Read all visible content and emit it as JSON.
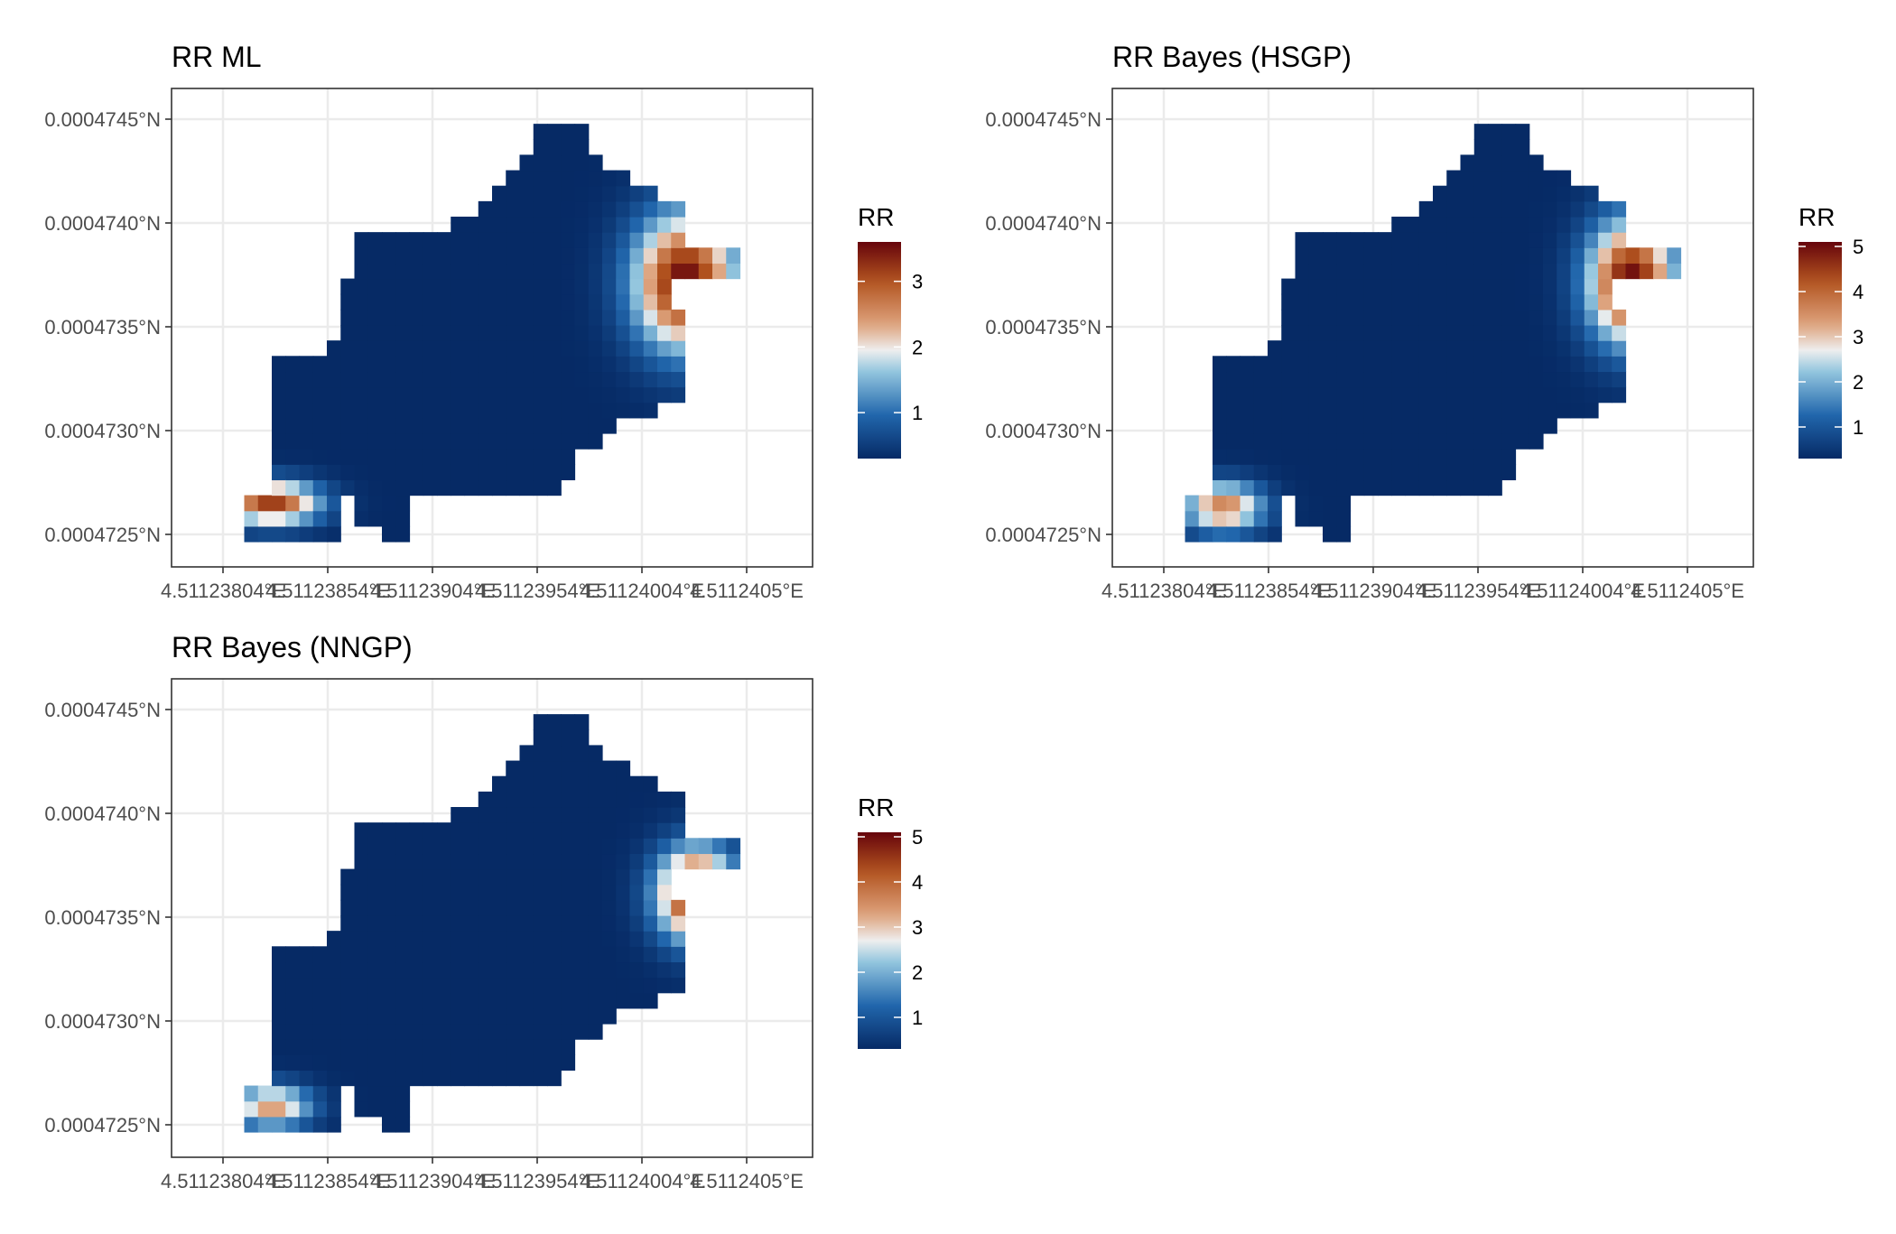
{
  "chart_data": [
    {
      "type": "heatmap",
      "title": "RR ML",
      "xlabel": "",
      "ylabel": "",
      "x_ticks": [
        "4.51123804°E",
        "4.51123854°E",
        "4.51123904°E",
        "4.51123954°E",
        "4.51124004°E",
        "4.51124054°E"
      ],
      "x_tick_labels": [
        "4.51123804°E",
        "4.51123854°E",
        "4.51123904°E",
        "4.51123954°E",
        "4.51124004°E",
        "4.5112405°E"
      ],
      "y_tick_labels": [
        "0.0004745°N",
        "0.0004740°N",
        "0.0004735°N",
        "0.0004730°N",
        "0.0004725°N"
      ],
      "legend": {
        "title": "RR",
        "ticks": [
          1,
          2,
          3
        ],
        "range": [
          0.3,
          3.6
        ],
        "placement": "right"
      },
      "grid": true,
      "hotspots": [
        {
          "cx": 0.85,
          "cy": 0.6,
          "sx": 0.065,
          "sy": 0.11,
          "amp": 3.3
        },
        {
          "cx": 0.1,
          "cy": 0.09,
          "sx": 0.06,
          "sy": 0.035,
          "amp": 2.9
        }
      ],
      "base_rr": 0.3
    },
    {
      "type": "heatmap",
      "title": "RR Bayes (HSGP)",
      "xlabel": "",
      "ylabel": "",
      "x_tick_labels": [
        "4.51123804°E",
        "4.51123854°E",
        "4.51123904°E",
        "4.51123954°E",
        "4.51124004°E",
        "4.5112405°E"
      ],
      "y_tick_labels": [
        "0.0004745°N",
        "0.0004740°N",
        "0.0004735°N",
        "0.0004730°N",
        "0.0004725°N"
      ],
      "legend": {
        "title": "RR",
        "ticks": [
          1,
          2,
          3,
          4,
          5
        ],
        "range": [
          0.3,
          5.1
        ],
        "placement": "right"
      },
      "grid": true,
      "hotspots": [
        {
          "cx": 0.86,
          "cy": 0.6,
          "sx": 0.055,
          "sy": 0.1,
          "amp": 4.8
        },
        {
          "cx": 0.12,
          "cy": 0.08,
          "sx": 0.05,
          "sy": 0.04,
          "amp": 3.4
        }
      ],
      "base_rr": 0.3
    },
    {
      "type": "heatmap",
      "title": "RR Bayes (NNGP)",
      "xlabel": "",
      "ylabel": "",
      "x_tick_labels": [
        "4.51123804°E",
        "4.51123854°E",
        "4.51123904°E",
        "4.51123954°E",
        "4.51124004°E",
        "4.5112405°E"
      ],
      "y_tick_labels": [
        "0.0004745°N",
        "0.0004740°N",
        "0.0004735°N",
        "0.0004730°N",
        "0.0004725°N"
      ],
      "legend": {
        "title": "RR",
        "ticks": [
          1,
          2,
          3,
          4,
          5
        ],
        "range": [
          0.3,
          5.1
        ],
        "placement": "right"
      },
      "grid": true,
      "hotspots": [
        {
          "cx": 0.87,
          "cy": 0.55,
          "sx": 0.05,
          "sy": 0.075,
          "amp": 4.8
        },
        {
          "cx": 0.1,
          "cy": 0.06,
          "sx": 0.05,
          "sy": 0.035,
          "amp": 3.1
        }
      ],
      "base_rr": 0.3
    }
  ],
  "colors": {
    "scale_low": "#062a65",
    "scale_mid_low": "#2166ac",
    "scale_light": "#92c5de",
    "scale_mid": "#eeeeee",
    "scale_warm": "#dda27c",
    "scale_high_mid": "#b2531f",
    "scale_high": "#66040b",
    "grid": "#ebebeb",
    "panel_border": "#333333",
    "text": "#000000",
    "tick_text": "#4d4d4d"
  }
}
